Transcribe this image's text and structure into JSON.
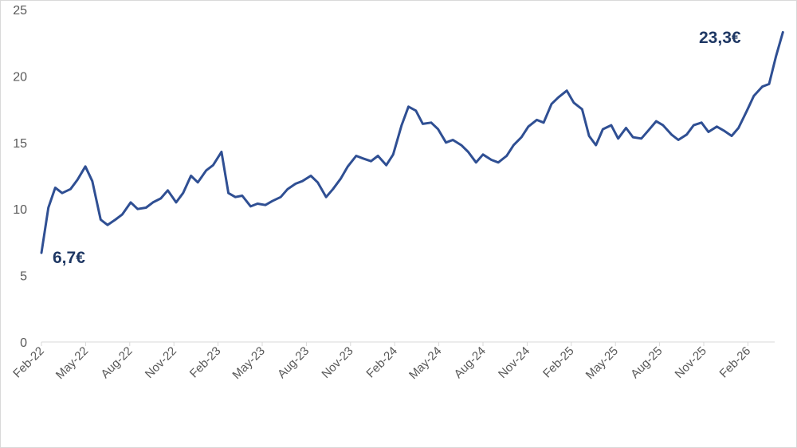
{
  "chart_data": {
    "type": "line",
    "title": "",
    "xlabel": "",
    "ylabel": "",
    "ylim": [
      0,
      25
    ],
    "y_ticks": [
      "0",
      "5",
      "10",
      "15",
      "20",
      "25"
    ],
    "x_ticks": [
      "Feb-22",
      "May-22",
      "Aug-22",
      "Nov-22",
      "Feb-23",
      "May-23",
      "Aug-23",
      "Nov-23",
      "Feb-24",
      "May-24",
      "Aug-24",
      "Nov-24",
      "Feb-25",
      "May-25",
      "Aug-25",
      "Nov-25",
      "Feb-26"
    ],
    "grid": false,
    "legend": "none",
    "line_color": "#2f4f93",
    "annotation_color": "#1f3864",
    "series": [
      {
        "x": [
          "2022-02-01",
          "2022-02-15",
          "2022-03-01",
          "2022-03-15",
          "2022-04-01",
          "2022-04-15",
          "2022-05-01",
          "2022-05-15",
          "2022-06-01",
          "2022-06-15",
          "2022-07-01",
          "2022-07-15",
          "2022-08-01",
          "2022-08-15",
          "2022-09-01",
          "2022-09-15",
          "2022-10-01",
          "2022-10-15",
          "2022-11-01",
          "2022-11-15",
          "2022-12-01",
          "2022-12-15",
          "2023-01-01",
          "2023-01-15",
          "2023-02-01",
          "2023-02-15",
          "2023-03-01",
          "2023-03-15",
          "2023-04-01",
          "2023-04-15",
          "2023-05-01",
          "2023-05-15",
          "2023-06-01",
          "2023-06-15",
          "2023-07-01",
          "2023-07-15",
          "2023-08-01",
          "2023-08-15",
          "2023-09-01",
          "2023-09-15",
          "2023-10-01",
          "2023-10-15",
          "2023-11-01",
          "2023-11-15",
          "2023-12-01",
          "2023-12-15",
          "2024-01-01",
          "2024-01-15",
          "2024-02-01",
          "2024-02-15",
          "2024-03-01",
          "2024-03-15",
          "2024-04-01",
          "2024-04-15",
          "2024-05-01",
          "2024-05-15",
          "2024-06-01",
          "2024-06-15",
          "2024-07-01",
          "2024-07-15",
          "2024-08-01",
          "2024-08-15",
          "2024-09-01",
          "2024-09-15",
          "2024-10-01",
          "2024-10-15",
          "2024-11-01",
          "2024-11-15",
          "2024-12-01",
          "2024-12-15",
          "2025-01-01",
          "2025-01-15",
          "2025-02-01",
          "2025-02-15",
          "2025-03-01",
          "2025-03-15",
          "2025-04-01",
          "2025-04-15",
          "2025-05-01",
          "2025-05-15",
          "2025-06-01",
          "2025-06-15",
          "2025-07-01",
          "2025-07-15",
          "2025-08-01",
          "2025-08-15",
          "2025-09-01",
          "2025-09-15",
          "2025-10-01",
          "2025-10-15",
          "2025-11-01",
          "2025-11-15",
          "2025-12-01",
          "2025-12-15",
          "2026-01-01",
          "2026-01-15",
          "2026-02-01",
          "2026-02-15",
          "2026-03-01",
          "2026-03-15"
        ],
        "values": [
          6.7,
          10.1,
          11.6,
          11.2,
          11.5,
          12.2,
          13.2,
          12.1,
          9.2,
          8.8,
          9.2,
          9.6,
          10.5,
          10.0,
          10.1,
          10.5,
          10.8,
          11.4,
          10.5,
          11.2,
          12.5,
          12.0,
          12.9,
          13.3,
          14.3,
          11.2,
          10.9,
          11.0,
          10.2,
          10.4,
          10.3,
          10.6,
          10.9,
          11.5,
          11.9,
          12.1,
          12.5,
          12.0,
          10.9,
          11.5,
          12.3,
          13.2,
          14.0,
          13.8,
          13.6,
          14.0,
          13.3,
          14.1,
          16.3,
          17.7,
          17.4,
          16.4,
          16.5,
          16.0,
          15.0,
          15.2,
          14.8,
          14.3,
          13.5,
          14.1,
          13.7,
          13.5,
          14.0,
          14.8,
          15.4,
          16.2,
          16.7,
          16.5,
          17.9,
          18.4,
          18.9,
          18.0,
          17.5,
          15.5,
          14.8,
          16.0,
          16.3,
          15.3,
          16.1,
          15.4,
          15.3,
          15.9,
          16.6,
          16.3,
          15.6,
          15.2,
          15.6,
          16.3,
          16.5,
          15.8,
          16.2,
          15.9,
          15.5,
          16.1,
          17.4,
          18.5,
          19.2,
          19.4,
          21.5,
          23.3
        ]
      }
    ],
    "annotations": [
      {
        "text": "6,7€",
        "x": "2022-02-01",
        "y": 6.7
      },
      {
        "text": "23,3€",
        "x": "2026-03-15",
        "y": 23.3
      }
    ]
  }
}
